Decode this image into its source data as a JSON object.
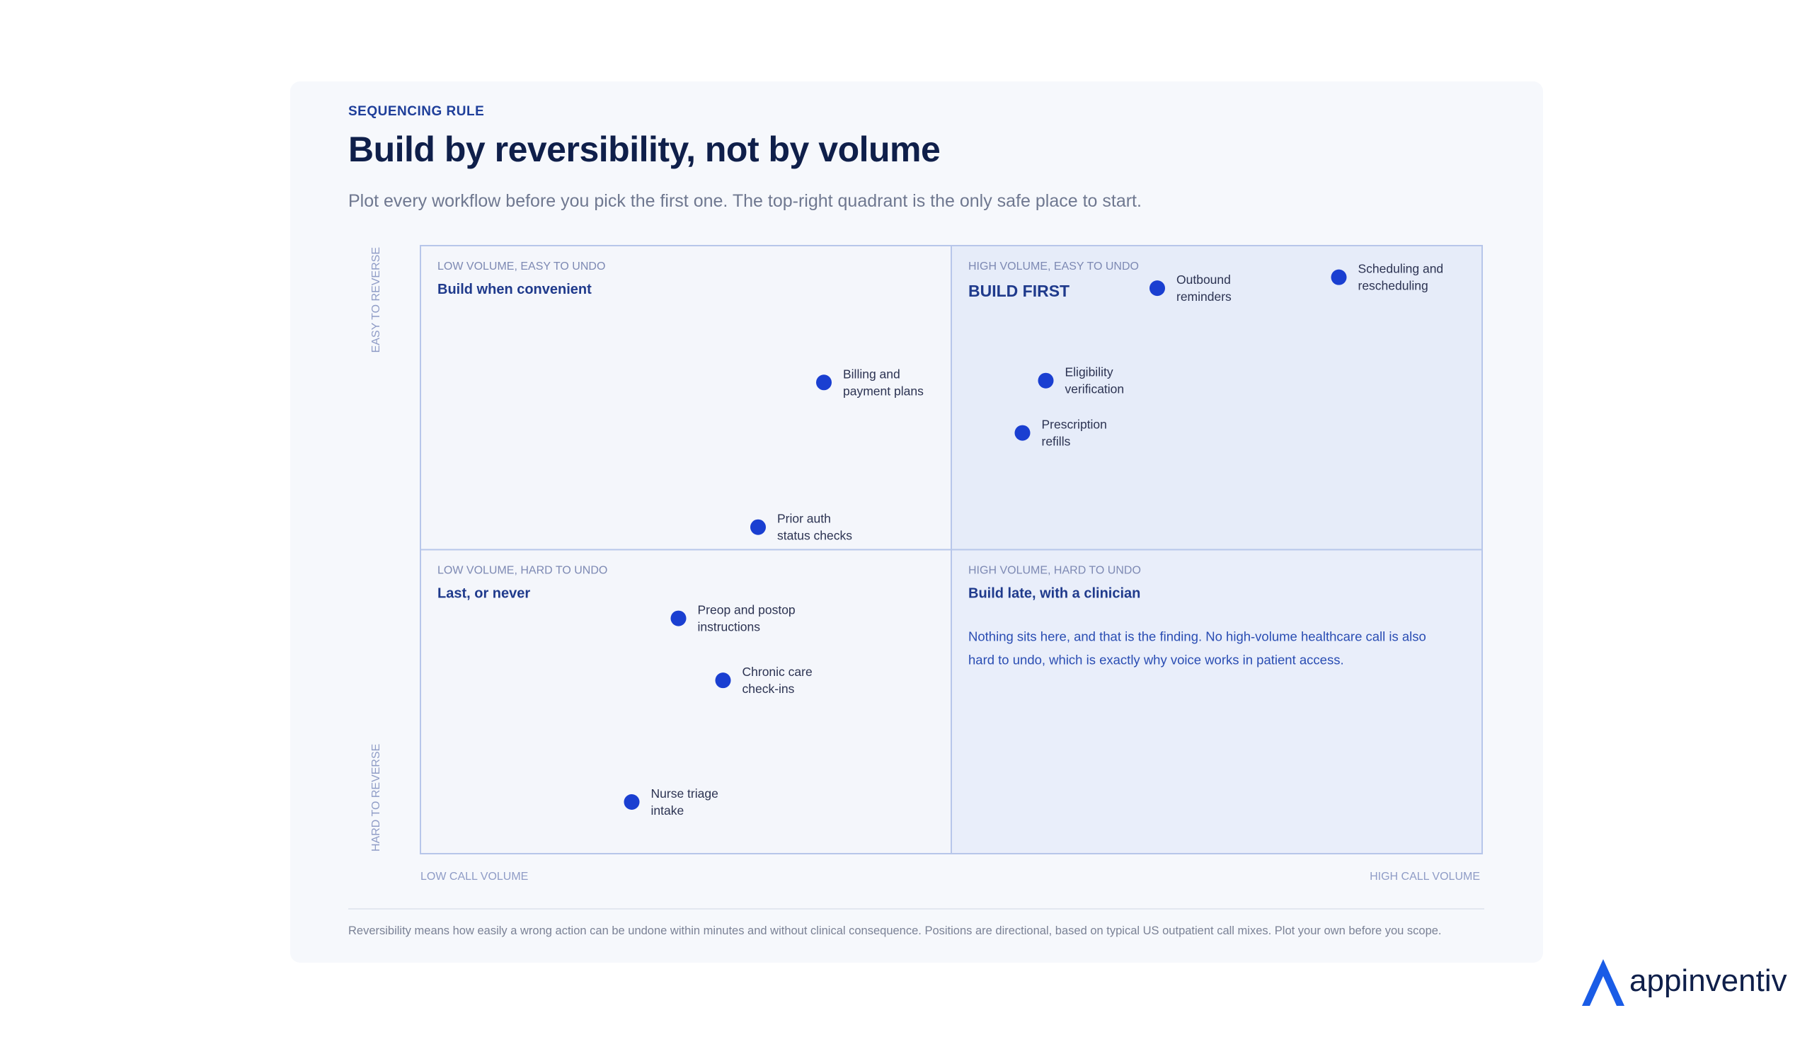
{
  "header": {
    "eyebrow": "SEQUENCING RULE",
    "title": "Build by reversibility, not by volume",
    "subtitle": "Plot every workflow before you pick the first one. The top-right quadrant is the only safe place to start."
  },
  "footnote": "Reversibility means how easily a wrong action can be undone within minutes and without clinical consequence. Positions are directional, based on typical US outpatient call mixes. Plot your own before you scope.",
  "brand": {
    "name": "appinventiv",
    "accent": "#1a5ce6"
  },
  "colors": {
    "point": "#1a3fd1",
    "quadrant_border": "#b7c6ea",
    "quadrant_bg": "#f4f6fb",
    "quadrant_build_first_bg": "#e6ecf9",
    "quadrant_build_late_bg": "#e9eefa",
    "axis_label": "#8f9cc6",
    "quadrant_heading": "#1f3a8c",
    "quadrant_tag": "#7d89b3",
    "point_label": "#2c3352",
    "note_text": "#2a4db3"
  },
  "chart_data": {
    "type": "scatter",
    "title": "Build by reversibility, not by volume",
    "xlabel_low": "LOW CALL VOLUME",
    "xlabel_high": "HIGH CALL VOLUME",
    "ylabel_high": "EASY TO REVERSE",
    "ylabel_low": "HARD TO REVERSE",
    "xlim": [
      0,
      100
    ],
    "ylim": [
      0,
      100
    ],
    "grid": false,
    "quadrants": [
      {
        "id": "top-left",
        "tag": "LOW VOLUME, EASY TO UNDO",
        "heading": "Build when convenient"
      },
      {
        "id": "top-right",
        "tag": "HIGH VOLUME, EASY TO UNDO",
        "heading": "BUILD FIRST"
      },
      {
        "id": "bottom-left",
        "tag": "LOW VOLUME, HARD TO UNDO",
        "heading": "Last, or never"
      },
      {
        "id": "bottom-right",
        "tag": "HIGH VOLUME, HARD TO UNDO",
        "heading": "Build late, with a clinician",
        "note_lines": [
          "Nothing sits here, and that is the finding. No high-volume healthcare call is also",
          "hard to undo, which is exactly why voice works in patient access."
        ]
      }
    ],
    "points": [
      {
        "label_lines": [
          "Outbound",
          "reminders"
        ],
        "x": 69.4,
        "y": 93
      },
      {
        "label_lines": [
          "Scheduling and",
          "rescheduling"
        ],
        "x": 86.5,
        "y": 94.8
      },
      {
        "label_lines": [
          "Billing and",
          "payment plans"
        ],
        "x": 38.0,
        "y": 77.5
      },
      {
        "label_lines": [
          "Eligibility",
          "verification"
        ],
        "x": 58.9,
        "y": 77.8
      },
      {
        "label_lines": [
          "Prescription",
          "refills"
        ],
        "x": 56.7,
        "y": 69.2
      },
      {
        "label_lines": [
          "Prior auth",
          "status checks"
        ],
        "x": 31.8,
        "y": 53.7
      },
      {
        "label_lines": [
          "Preop and postop",
          "instructions"
        ],
        "x": 24.3,
        "y": 38.7
      },
      {
        "label_lines": [
          "Chronic care",
          "check-ins"
        ],
        "x": 28.5,
        "y": 28.5
      },
      {
        "label_lines": [
          "Nurse triage",
          "intake"
        ],
        "x": 19.9,
        "y": 8.5
      }
    ]
  }
}
